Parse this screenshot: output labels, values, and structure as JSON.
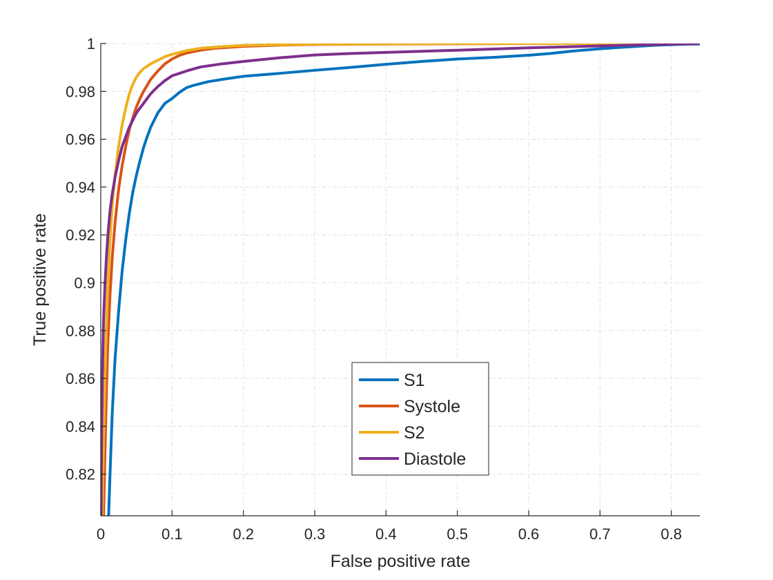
{
  "chart_data": {
    "type": "line",
    "title": "",
    "xlabel": "False positive rate",
    "ylabel": "True positive rate",
    "xlim": [
      0,
      0.84
    ],
    "ylim": [
      0.8026,
      1.0
    ],
    "xticks": [
      0,
      0.1,
      0.2,
      0.3,
      0.4,
      0.5,
      0.6,
      0.7,
      0.8
    ],
    "xtick_labels": [
      "0",
      "0.1",
      "0.2",
      "0.3",
      "0.4",
      "0.5",
      "0.6",
      "0.7",
      "0.8"
    ],
    "yticks": [
      0.82,
      0.84,
      0.86,
      0.88,
      0.9,
      0.92,
      0.94,
      0.96,
      0.98,
      1.0
    ],
    "ytick_labels": [
      "0.82",
      "0.84",
      "0.86",
      "0.88",
      "0.9",
      "0.92",
      "0.94",
      "0.96",
      "0.98",
      "1"
    ],
    "grid": true,
    "legend_position": "bottom-center",
    "series": [
      {
        "name": "S1",
        "color": "#0072BD",
        "x": [
          0.011,
          0.013,
          0.016,
          0.02,
          0.025,
          0.03,
          0.035,
          0.04,
          0.045,
          0.05,
          0.055,
          0.06,
          0.065,
          0.07,
          0.075,
          0.08,
          0.085,
          0.09,
          0.1,
          0.11,
          0.12,
          0.13,
          0.15,
          0.17,
          0.2,
          0.25,
          0.3,
          0.35,
          0.4,
          0.45,
          0.5,
          0.55,
          0.6,
          0.63,
          0.66,
          0.7,
          0.74,
          0.78,
          0.82,
          0.84
        ],
        "y": [
          0.8026,
          0.82,
          0.845,
          0.868,
          0.888,
          0.905,
          0.918,
          0.929,
          0.938,
          0.945,
          0.951,
          0.9565,
          0.961,
          0.965,
          0.968,
          0.971,
          0.973,
          0.975,
          0.977,
          0.9795,
          0.9815,
          0.9825,
          0.984,
          0.985,
          0.9863,
          0.9875,
          0.9888,
          0.99,
          0.9913,
          0.9925,
          0.9935,
          0.9942,
          0.9951,
          0.9958,
          0.9968,
          0.9978,
          0.9986,
          0.9993,
          0.9997,
          0.9998
        ]
      },
      {
        "name": "Systole",
        "color": "#D95319",
        "x": [
          0.004,
          0.006,
          0.008,
          0.01,
          0.013,
          0.016,
          0.02,
          0.025,
          0.03,
          0.035,
          0.04,
          0.045,
          0.05,
          0.055,
          0.06,
          0.065,
          0.07,
          0.08,
          0.09,
          0.1,
          0.11,
          0.12,
          0.14,
          0.16,
          0.2,
          0.25,
          0.3,
          0.4,
          0.5,
          0.6,
          0.7,
          0.8,
          0.84
        ],
        "y": [
          0.8026,
          0.83,
          0.855,
          0.875,
          0.895,
          0.91,
          0.925,
          0.939,
          0.949,
          0.957,
          0.964,
          0.969,
          0.9735,
          0.977,
          0.98,
          0.9825,
          0.985,
          0.9885,
          0.9915,
          0.9935,
          0.995,
          0.996,
          0.9972,
          0.998,
          0.9988,
          0.9993,
          0.9996,
          0.9998,
          0.9999,
          0.99995,
          1.0,
          1.0,
          1.0
        ]
      },
      {
        "name": "S2",
        "color": "#EDB120",
        "x": [
          0.002,
          0.004,
          0.006,
          0.008,
          0.01,
          0.013,
          0.016,
          0.02,
          0.025,
          0.03,
          0.035,
          0.04,
          0.045,
          0.05,
          0.055,
          0.06,
          0.07,
          0.08,
          0.09,
          0.1,
          0.12,
          0.14,
          0.17,
          0.2,
          0.25,
          0.3,
          0.4,
          0.5,
          0.6,
          0.7,
          0.8,
          0.84
        ],
        "y": [
          0.8026,
          0.835,
          0.862,
          0.883,
          0.9,
          0.918,
          0.932,
          0.945,
          0.957,
          0.966,
          0.973,
          0.979,
          0.983,
          0.986,
          0.988,
          0.9895,
          0.9915,
          0.993,
          0.9945,
          0.9955,
          0.997,
          0.998,
          0.9987,
          0.9992,
          0.9995,
          0.9997,
          0.9999,
          1.0,
          1.0,
          1.0,
          1.0,
          1.0
        ]
      },
      {
        "name": "Diastole",
        "color": "#7E2F8E",
        "x": [
          0.0005,
          0.001,
          0.002,
          0.003,
          0.004,
          0.006,
          0.008,
          0.01,
          0.013,
          0.016,
          0.02,
          0.025,
          0.03,
          0.035,
          0.04,
          0.05,
          0.06,
          0.07,
          0.08,
          0.09,
          0.1,
          0.12,
          0.14,
          0.17,
          0.2,
          0.25,
          0.3,
          0.35,
          0.4,
          0.5,
          0.6,
          0.7,
          0.8,
          0.84
        ],
        "y": [
          0.8026,
          0.83,
          0.855,
          0.872,
          0.885,
          0.9,
          0.911,
          0.92,
          0.93,
          0.937,
          0.944,
          0.951,
          0.957,
          0.961,
          0.965,
          0.971,
          0.975,
          0.979,
          0.982,
          0.9845,
          0.9865,
          0.9885,
          0.9902,
          0.9915,
          0.9925,
          0.994,
          0.9952,
          0.9958,
          0.9963,
          0.9972,
          0.9982,
          0.999,
          0.9997,
          1.0
        ]
      }
    ]
  }
}
